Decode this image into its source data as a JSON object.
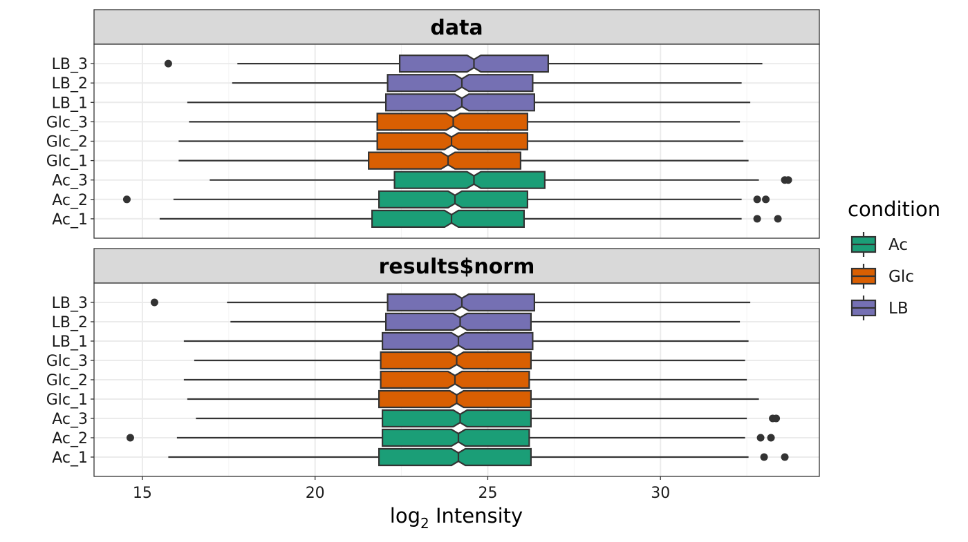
{
  "chart_data": {
    "type": "boxplot",
    "orientation": "horizontal",
    "notched": true,
    "xlabel_base": "log",
    "xlabel_sub": "2",
    "xlabel_rest": " Intensity",
    "xlim": [
      13.6,
      34.6
    ],
    "xticks": [
      15,
      20,
      25,
      30
    ],
    "categories": [
      "Ac_1",
      "Ac_2",
      "Ac_3",
      "Glc_1",
      "Glc_2",
      "Glc_3",
      "LB_1",
      "LB_2",
      "LB_3"
    ],
    "legend": {
      "title": "condition",
      "position": "right",
      "entries": [
        {
          "label": "Ac",
          "color": "#1b9e77"
        },
        {
          "label": "Glc",
          "color": "#d95f02"
        },
        {
          "label": "LB",
          "color": "#7570b3"
        }
      ]
    },
    "panels": [
      {
        "title": "data",
        "boxes": [
          {
            "label": "Ac_1",
            "condition": "Ac",
            "whisker_low": 15.5,
            "q1": 21.65,
            "median": 23.95,
            "q3": 26.05,
            "whisker_high": 32.35,
            "notch": [
              23.75,
              24.15
            ],
            "outliers": [
              32.8,
              33.4
            ]
          },
          {
            "label": "Ac_2",
            "condition": "Ac",
            "whisker_low": 15.9,
            "q1": 21.85,
            "median": 24.05,
            "q3": 26.15,
            "whisker_high": 32.35,
            "notch": [
              23.85,
              24.25
            ],
            "outliers": [
              14.55,
              32.8,
              33.05
            ]
          },
          {
            "label": "Ac_3",
            "condition": "Ac",
            "whisker_low": 16.95,
            "q1": 22.3,
            "median": 24.6,
            "q3": 26.65,
            "whisker_high": 32.85,
            "notch": [
              24.4,
              24.8
            ],
            "outliers": [
              33.6,
              33.7
            ]
          },
          {
            "label": "Glc_1",
            "condition": "Glc",
            "whisker_low": 16.05,
            "q1": 21.55,
            "median": 23.85,
            "q3": 25.95,
            "whisker_high": 32.55,
            "notch": [
              23.65,
              24.05
            ],
            "outliers": []
          },
          {
            "label": "Glc_2",
            "condition": "Glc",
            "whisker_low": 16.05,
            "q1": 21.8,
            "median": 23.95,
            "q3": 26.15,
            "whisker_high": 32.4,
            "notch": [
              23.75,
              24.15
            ],
            "outliers": []
          },
          {
            "label": "Glc_3",
            "condition": "Glc",
            "whisker_low": 16.35,
            "q1": 21.8,
            "median": 24.0,
            "q3": 26.15,
            "whisker_high": 32.3,
            "notch": [
              23.8,
              24.2
            ],
            "outliers": []
          },
          {
            "label": "LB_1",
            "condition": "LB",
            "whisker_low": 16.3,
            "q1": 22.05,
            "median": 24.25,
            "q3": 26.35,
            "whisker_high": 32.6,
            "notch": [
              24.05,
              24.45
            ],
            "outliers": []
          },
          {
            "label": "LB_2",
            "condition": "LB",
            "whisker_low": 17.6,
            "q1": 22.1,
            "median": 24.25,
            "q3": 26.3,
            "whisker_high": 32.35,
            "notch": [
              24.05,
              24.45
            ],
            "outliers": []
          },
          {
            "label": "LB_3",
            "condition": "LB",
            "whisker_low": 17.75,
            "q1": 22.45,
            "median": 24.6,
            "q3": 26.75,
            "whisker_high": 32.95,
            "notch": [
              24.4,
              24.8
            ],
            "outliers": [
              15.75
            ]
          }
        ]
      },
      {
        "title": "results$norm",
        "boxes": [
          {
            "label": "Ac_1",
            "condition": "Ac",
            "whisker_low": 15.75,
            "q1": 21.85,
            "median": 24.15,
            "q3": 26.25,
            "whisker_high": 32.55,
            "notch": [
              23.95,
              24.35
            ],
            "outliers": [
              33.0,
              33.6
            ]
          },
          {
            "label": "Ac_2",
            "condition": "Ac",
            "whisker_low": 16.0,
            "q1": 21.95,
            "median": 24.15,
            "q3": 26.2,
            "whisker_high": 32.45,
            "notch": [
              23.95,
              24.35
            ],
            "outliers": [
              14.65,
              32.9,
              33.2
            ]
          },
          {
            "label": "Ac_3",
            "condition": "Ac",
            "whisker_low": 16.55,
            "q1": 21.95,
            "median": 24.2,
            "q3": 26.25,
            "whisker_high": 32.5,
            "notch": [
              24.0,
              24.4
            ],
            "outliers": [
              33.25,
              33.35
            ]
          },
          {
            "label": "Glc_1",
            "condition": "Glc",
            "whisker_low": 16.3,
            "q1": 21.85,
            "median": 24.1,
            "q3": 26.25,
            "whisker_high": 32.85,
            "notch": [
              23.9,
              24.3
            ],
            "outliers": []
          },
          {
            "label": "Glc_2",
            "condition": "Glc",
            "whisker_low": 16.2,
            "q1": 21.9,
            "median": 24.05,
            "q3": 26.2,
            "whisker_high": 32.5,
            "notch": [
              23.85,
              24.25
            ],
            "outliers": []
          },
          {
            "label": "Glc_3",
            "condition": "Glc",
            "whisker_low": 16.5,
            "q1": 21.9,
            "median": 24.1,
            "q3": 26.25,
            "whisker_high": 32.45,
            "notch": [
              23.9,
              24.3
            ],
            "outliers": []
          },
          {
            "label": "LB_1",
            "condition": "LB",
            "whisker_low": 16.2,
            "q1": 21.95,
            "median": 24.15,
            "q3": 26.3,
            "whisker_high": 32.55,
            "notch": [
              23.95,
              24.35
            ],
            "outliers": []
          },
          {
            "label": "LB_2",
            "condition": "LB",
            "whisker_low": 17.55,
            "q1": 22.05,
            "median": 24.2,
            "q3": 26.25,
            "whisker_high": 32.3,
            "notch": [
              24.0,
              24.4
            ],
            "outliers": []
          },
          {
            "label": "LB_3",
            "condition": "LB",
            "whisker_low": 17.45,
            "q1": 22.1,
            "median": 24.25,
            "q3": 26.35,
            "whisker_high": 32.6,
            "notch": [
              24.05,
              24.45
            ],
            "outliers": [
              15.35
            ]
          }
        ]
      }
    ]
  }
}
